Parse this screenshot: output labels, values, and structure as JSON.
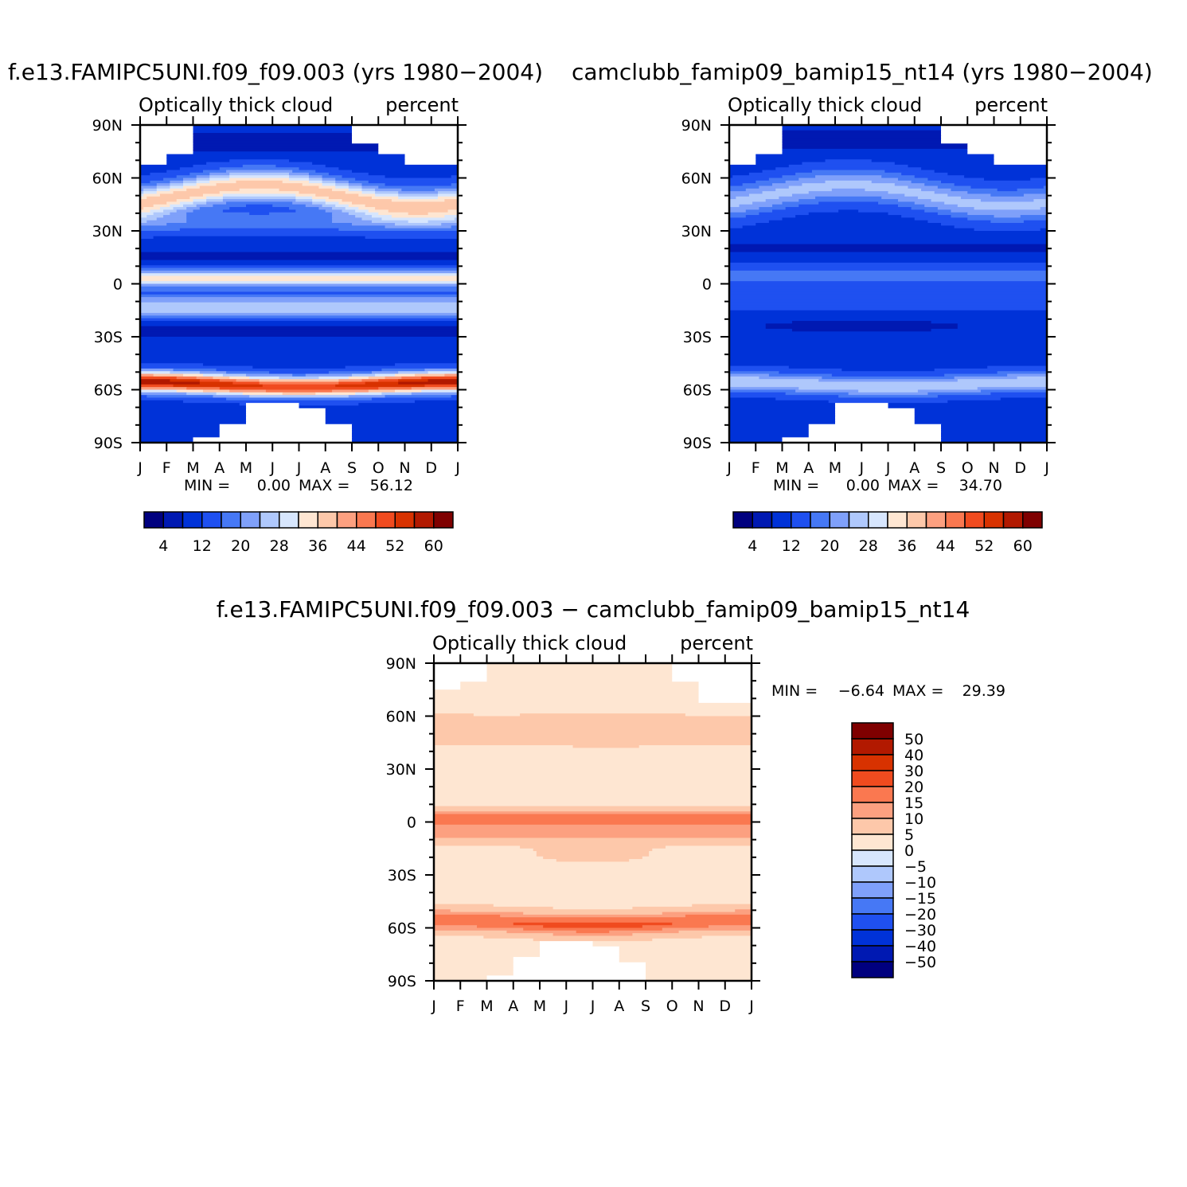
{
  "colors": {
    "seq": [
      "#00007f",
      "#0019b2",
      "#0032d8",
      "#1f50f0",
      "#4678f5",
      "#7fa0fa",
      "#afc8fc",
      "#d7e6fd",
      "#fee6d2",
      "#fdc8aa",
      "#fca080",
      "#fa7850",
      "#f04b1f",
      "#d83200",
      "#b21900",
      "#7f0000"
    ],
    "diff": [
      "#00007f",
      "#0019b2",
      "#0032d8",
      "#1f50f0",
      "#4678f5",
      "#7fa0fa",
      "#afc8fc",
      "#d7e6fd",
      "#fee6d2",
      "#fdc8aa",
      "#fca080",
      "#fa7850",
      "#f04b1f",
      "#d83200",
      "#b21900",
      "#7f0000"
    ]
  },
  "chart_data": [
    {
      "type": "heatmap",
      "title": "f.e13.FAMIPC5UNI.f09_f09.003 (yrs 1980−2004)",
      "left_label": "Optically thick cloud",
      "right_label": "percent",
      "x_ticks": [
        "J",
        "F",
        "M",
        "A",
        "M",
        "J",
        "J",
        "A",
        "S",
        "O",
        "N",
        "D",
        "J"
      ],
      "y_ticks": [
        "90N",
        "60N",
        "30N",
        "0",
        "30S",
        "60S",
        "90S"
      ],
      "min_label": "MIN =",
      "min_value": "0.00",
      "max_label": "MAX =",
      "max_value": "56.12",
      "colorbar_labels": [
        "4",
        "12",
        "20",
        "28",
        "36",
        "44",
        "52",
        "60"
      ],
      "value_range": [
        0,
        56.12
      ]
    },
    {
      "type": "heatmap",
      "title": "camclubb_famip09_bamip15_nt14 (yrs 1980−2004)",
      "left_label": "Optically thick cloud",
      "right_label": "percent",
      "x_ticks": [
        "J",
        "F",
        "M",
        "A",
        "M",
        "J",
        "J",
        "A",
        "S",
        "O",
        "N",
        "D",
        "J"
      ],
      "y_ticks": [
        "90N",
        "60N",
        "30N",
        "0",
        "30S",
        "60S",
        "90S"
      ],
      "min_label": "MIN =",
      "min_value": "0.00",
      "max_label": "MAX =",
      "max_value": "34.70",
      "colorbar_labels": [
        "4",
        "12",
        "20",
        "28",
        "36",
        "44",
        "52",
        "60"
      ],
      "value_range": [
        0,
        34.7
      ]
    },
    {
      "type": "heatmap",
      "title": "f.e13.FAMIPC5UNI.f09_f09.003 − camclubb_famip09_bamip15_nt14",
      "left_label": "Optically thick cloud",
      "right_label": "percent",
      "x_ticks": [
        "J",
        "F",
        "M",
        "A",
        "M",
        "J",
        "J",
        "A",
        "S",
        "O",
        "N",
        "D",
        "J"
      ],
      "y_ticks": [
        "90N",
        "60N",
        "30N",
        "0",
        "30S",
        "60S",
        "90S"
      ],
      "min_label": "MIN =",
      "min_value": "−6.64",
      "max_label": "MAX =",
      "max_value": "29.39",
      "colorbar_labels": [
        "50",
        "40",
        "30",
        "20",
        "15",
        "10",
        "5",
        "0",
        "−5",
        "−10",
        "−15",
        "−20",
        "−30",
        "−40",
        "−50"
      ],
      "value_range": [
        -6.64,
        29.39
      ]
    }
  ]
}
